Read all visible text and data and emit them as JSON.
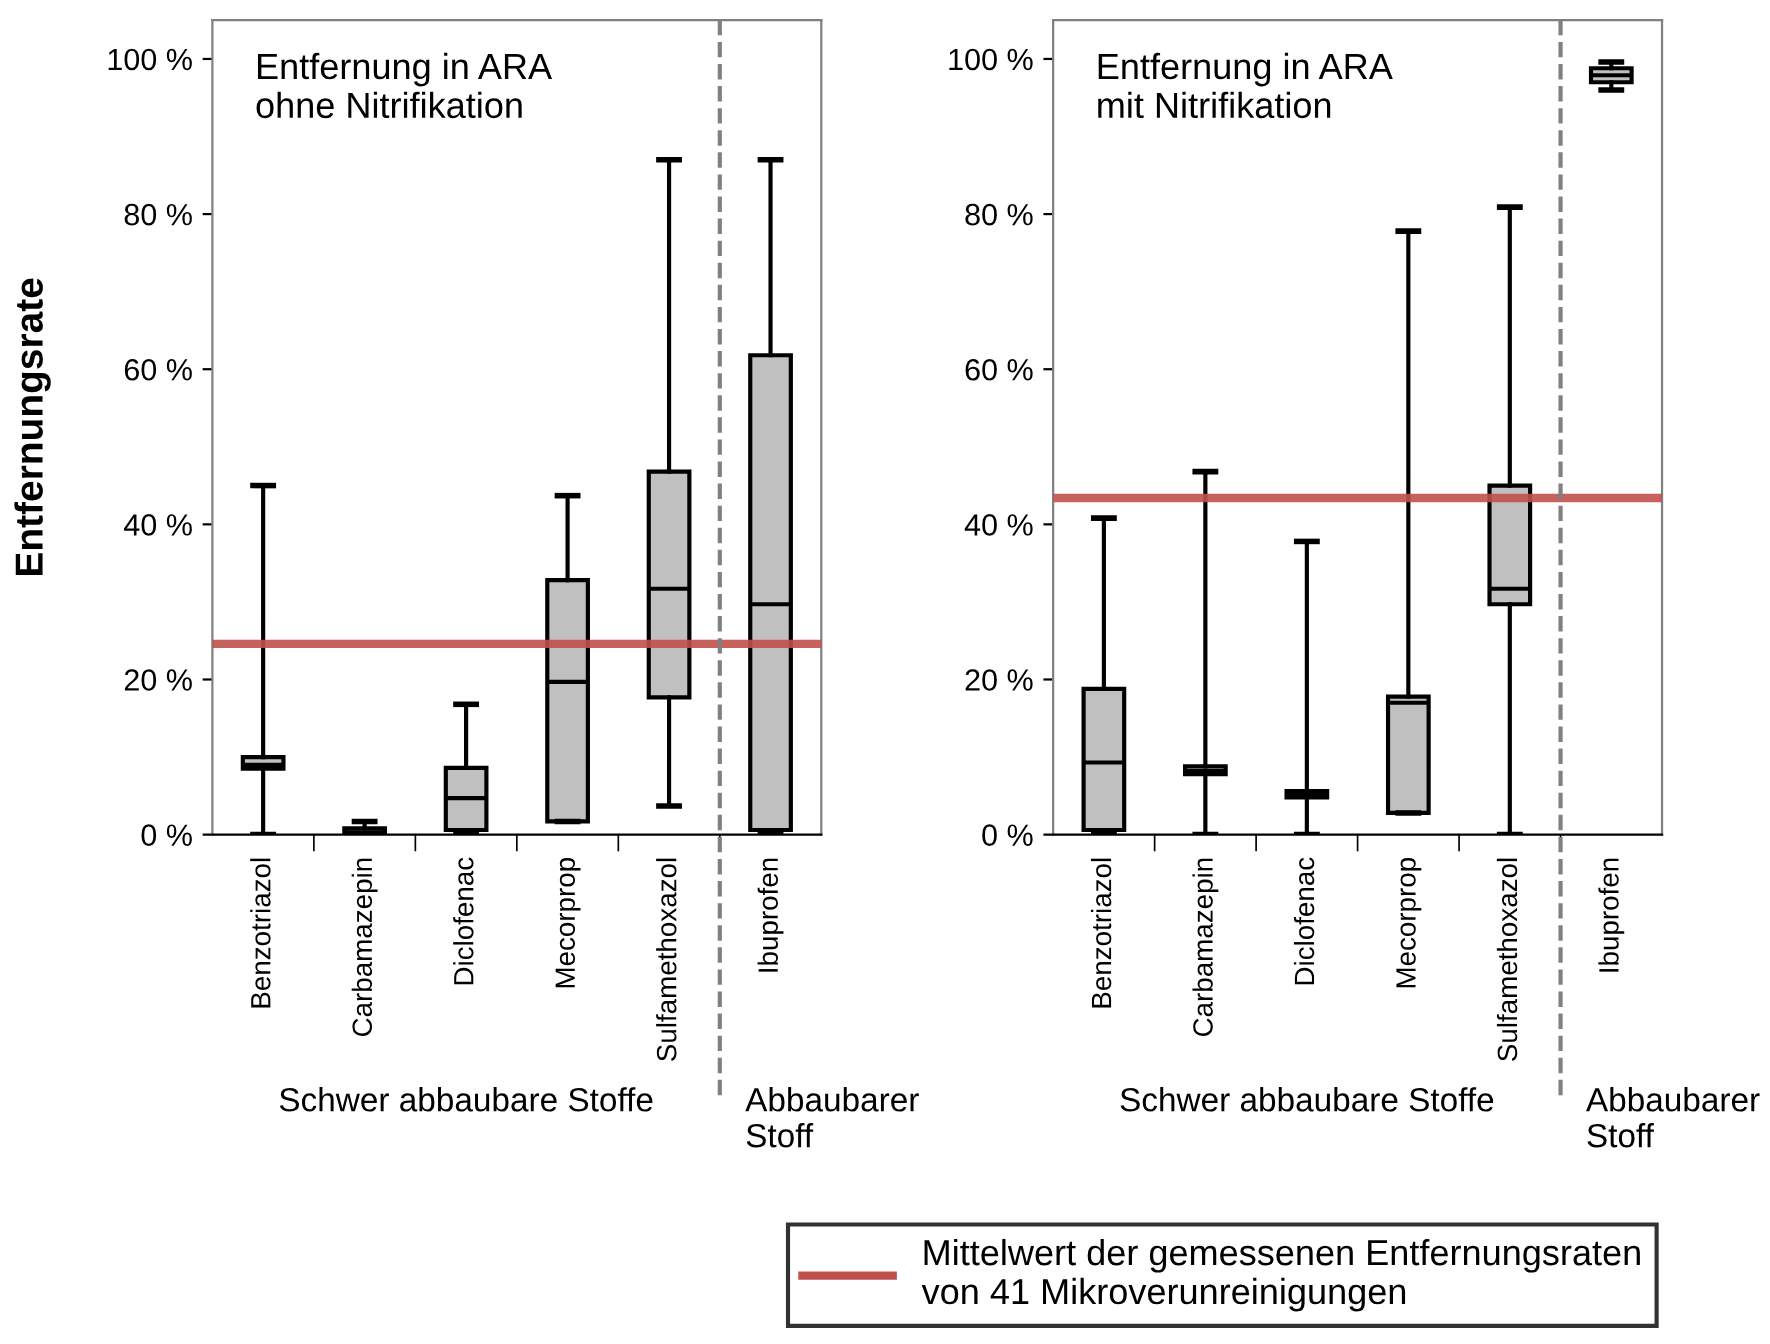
{
  "chart_data": [
    {
      "type": "box",
      "title": "Entfernung in ARA\nohne Nitrifikation",
      "ylabel": "Entfernungsrate",
      "categories": [
        "Benzotriazol",
        "Carbamazepin",
        "Diclofenac",
        "Mecorprop",
        "Sulfamethoxazol",
        "Ibuprofen"
      ],
      "color": "#c0c0c0",
      "boxes": [
        {
          "low": 0,
          "q1": 8.5,
          "median": 9,
          "q3": 10,
          "high": 45
        },
        {
          "low": 0,
          "q1": 0,
          "median": 0.3,
          "q3": 0.8,
          "high": 1.7
        },
        {
          "low": 0,
          "q1": 0.6,
          "median": 4.7,
          "q3": 8.6,
          "high": 16.8
        },
        {
          "low": 1.7,
          "q1": 1.7,
          "median": 19.7,
          "q3": 32.8,
          "high": 43.7
        },
        {
          "low": 3.7,
          "q1": 17.7,
          "median": 31.7,
          "q3": 46.8,
          "high": 87
        },
        {
          "low": 0,
          "q1": 0.6,
          "median": 29.7,
          "q3": 61.8,
          "high": 87
        }
      ],
      "ylim": [
        0,
        105
      ],
      "yticks": [
        {
          "value": 0,
          "label": "0 %"
        },
        {
          "value": 20,
          "label": "20 %"
        },
        {
          "value": 40,
          "label": "40 %"
        },
        {
          "value": 60,
          "label": "60 %"
        },
        {
          "value": 80,
          "label": "80 %"
        },
        {
          "value": 100,
          "label": "100 %"
        }
      ],
      "ref_lines": [
        {
          "axis": "y",
          "value": 24.6,
          "color": "#c0504d",
          "line_style": "solid"
        }
      ],
      "annotations": [
        "Schwer abbaubare Stoffe",
        "Abbaubarer\nStoff"
      ],
      "grid": false
    },
    {
      "type": "box",
      "title": "Entfernung in ARA\nmit Nitrifikation",
      "categories": [
        "Benzotriazol",
        "Carbamazepin",
        "Diclofenac",
        "Mecorprop",
        "Sulfamethoxazol",
        "Ibuprofen"
      ],
      "color": "#c0c0c0",
      "boxes": [
        {
          "low": 0,
          "q1": 0.6,
          "median": 9.3,
          "q3": 18.8,
          "high": 40.8
        },
        {
          "low": 0,
          "q1": 7.8,
          "median": 8.2,
          "q3": 8.8,
          "high": 46.8
        },
        {
          "low": 0,
          "q1": 4.8,
          "median": 5.2,
          "q3": 5.6,
          "high": 37.8
        },
        {
          "low": 2.8,
          "q1": 2.8,
          "median": 17,
          "q3": 17.8,
          "high": 77.8
        },
        {
          "low": 0,
          "q1": 29.7,
          "median": 31.7,
          "q3": 45,
          "high": 80.9
        },
        {
          "low": 96,
          "q1": 97,
          "median": 97.9,
          "q3": 98.8,
          "high": 99.6
        }
      ],
      "ylim": [
        0,
        105
      ],
      "yticks": [
        {
          "value": 0,
          "label": "0 %"
        },
        {
          "value": 20,
          "label": "20 %"
        },
        {
          "value": 40,
          "label": "40 %"
        },
        {
          "value": 60,
          "label": "60 %"
        },
        {
          "value": 80,
          "label": "80 %"
        },
        {
          "value": 100,
          "label": "100 %"
        }
      ],
      "ref_lines": [
        {
          "axis": "y",
          "value": 43.4,
          "color": "#c0504d",
          "line_style": "solid",
          "label": "Mittelwert der gemessenen Entfernungsraten\nvon 41 Mikroverunreinigungen"
        }
      ],
      "annotations": [
        "Schwer abbaubare Stoffe",
        "Abbaubarer\nStoff"
      ],
      "grid": false
    }
  ]
}
